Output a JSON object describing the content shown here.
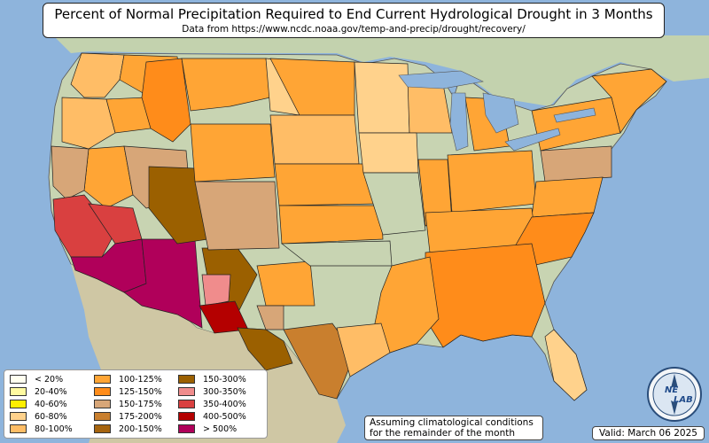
{
  "title": "Percent of Normal Precipitation Required to End Current Hydrological Drought in 3 Months",
  "subtitle": "Data from https://www.ncdc.noaa.gov/temp-and-precip/drought/recovery/",
  "colors": {
    "ocean": "#8eb4dc",
    "land": "#c7d3b1",
    "state_line": "#555555"
  },
  "legend": [
    {
      "label": "< 20%",
      "color": "#fffff0"
    },
    {
      "label": "20-40%",
      "color": "#fffaa0"
    },
    {
      "label": "40-60%",
      "color": "#ffef00"
    },
    {
      "label": "60-80%",
      "color": "#ffd28c"
    },
    {
      "label": "80-100%",
      "color": "#ffbd66"
    },
    {
      "label": "100-125%",
      "color": "#ffa535"
    },
    {
      "label": "125-150%",
      "color": "#ff8c1a"
    },
    {
      "label": "150-175%",
      "color": "#d7a678"
    },
    {
      "label": "175-200%",
      "color": "#c97f2e"
    },
    {
      "label": "200-150%",
      "color": "#a6640e"
    },
    {
      "label": "150-300%",
      "color": "#9b6000"
    },
    {
      "label": "300-350%",
      "color": "#f08c8c"
    },
    {
      "label": "350-400%",
      "color": "#d94040"
    },
    {
      "label": "400-500%",
      "color": "#b40000"
    },
    {
      "label": "> 500%",
      "color": "#b0005a"
    }
  ],
  "note": {
    "line1": "Assuming climatological conditions",
    "line2": "for the remainder of the month"
  },
  "valid": "Valid: March 06 2025",
  "logo": {
    "line1": "NE",
    "line2": "LAB"
  }
}
